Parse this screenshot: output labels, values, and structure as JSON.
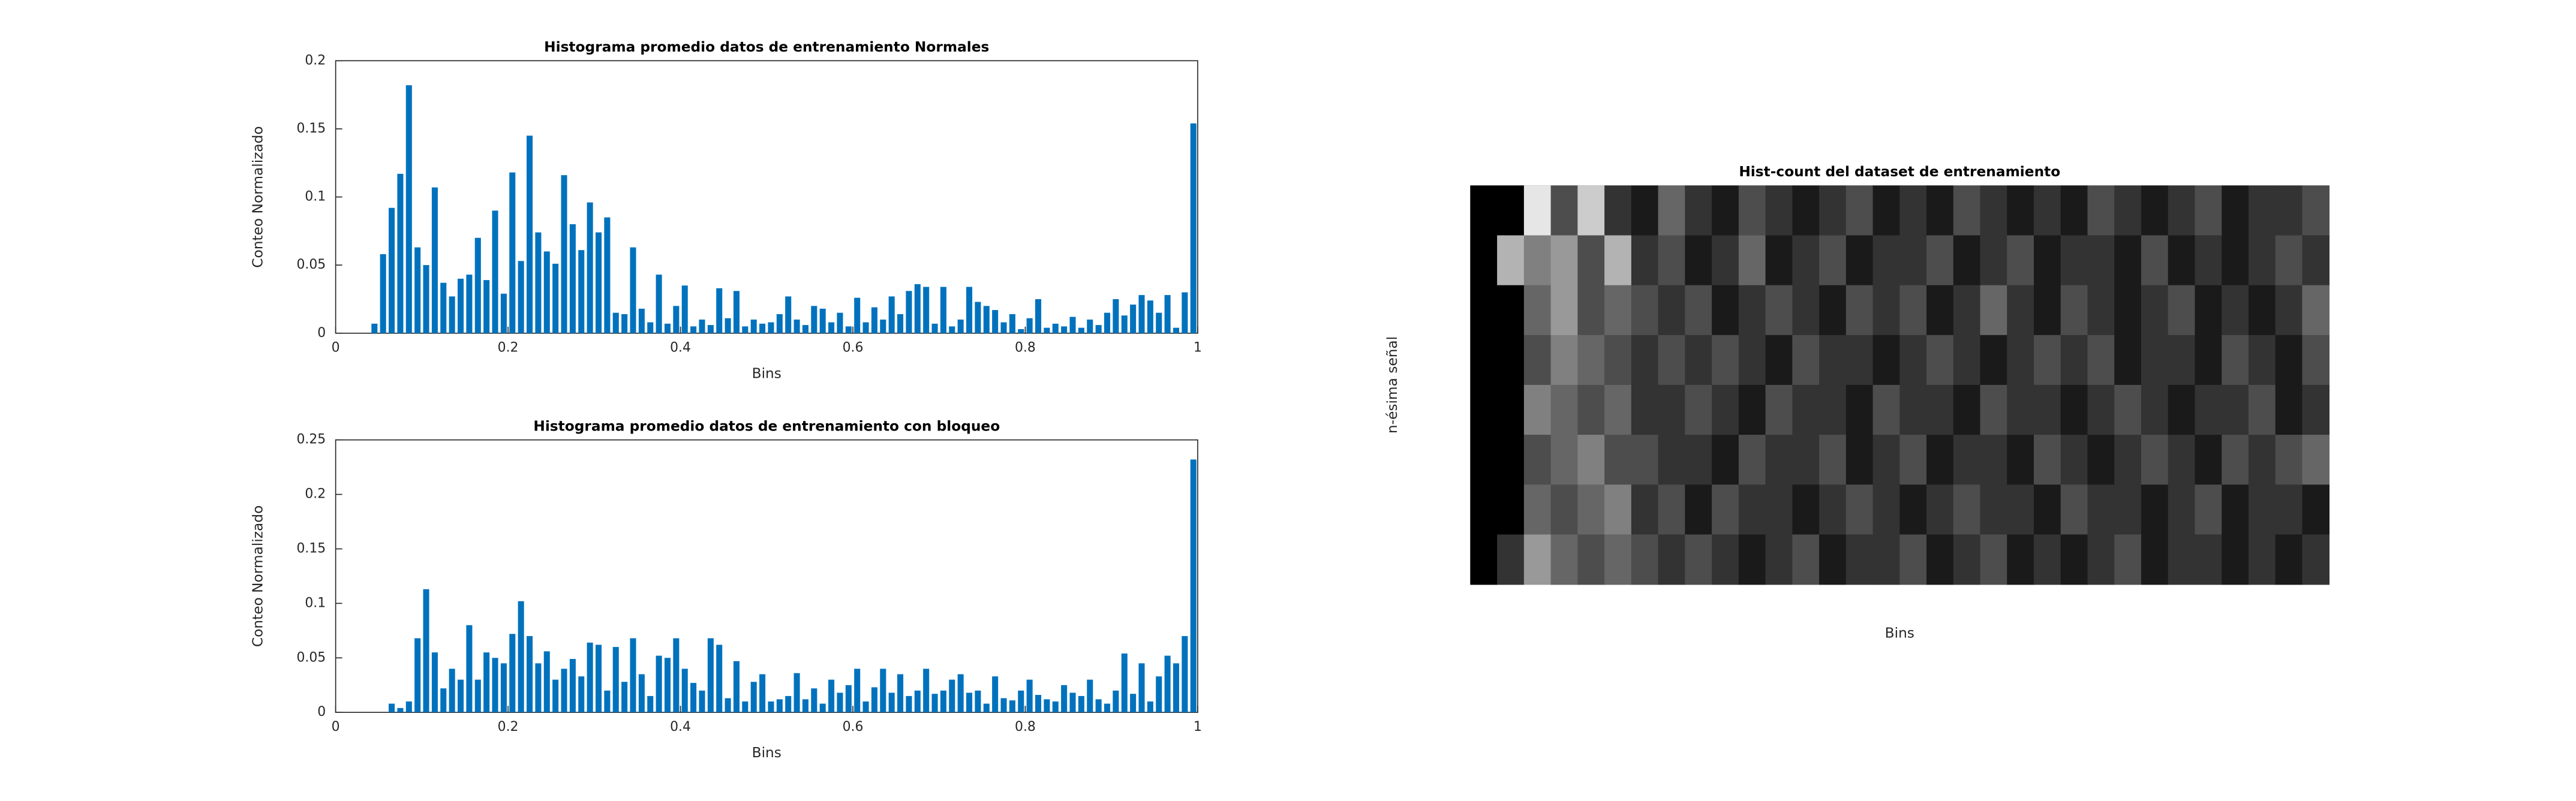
{
  "chart_data": [
    {
      "type": "histogram",
      "title": "Histograma promedio datos de entrenamiento Normales",
      "xlabel": "Bins",
      "ylabel": "Conteo Normalizado",
      "color": "#0072bd",
      "bins": [
        0,
        0.01,
        0.02,
        0.03,
        0.04,
        0.05,
        0.06,
        0.07,
        0.08,
        0.09,
        0.1,
        0.11,
        0.12,
        0.13,
        0.14,
        0.15,
        0.16,
        0.17,
        0.18,
        0.19,
        0.2,
        0.21,
        0.22,
        0.23,
        0.24,
        0.25,
        0.26,
        0.27,
        0.28,
        0.29,
        0.3,
        0.31,
        0.32,
        0.33,
        0.34,
        0.35,
        0.36,
        0.37,
        0.38,
        0.39,
        0.4,
        0.41,
        0.42,
        0.43,
        0.44,
        0.45,
        0.46,
        0.47,
        0.48,
        0.49,
        0.5,
        0.51,
        0.52,
        0.53,
        0.54,
        0.55,
        0.56,
        0.57,
        0.58,
        0.59,
        0.6,
        0.61,
        0.62,
        0.63,
        0.64,
        0.65,
        0.66,
        0.67,
        0.68,
        0.69,
        0.7,
        0.71,
        0.72,
        0.73,
        0.74,
        0.75,
        0.76,
        0.77,
        0.78,
        0.79,
        0.8,
        0.81,
        0.82,
        0.83,
        0.84,
        0.85,
        0.86,
        0.87,
        0.88,
        0.89,
        0.9,
        0.91,
        0.92,
        0.93,
        0.94,
        0.95,
        0.96,
        0.97,
        0.98,
        0.99,
        1
      ],
      "values": [
        0,
        0,
        0,
        0,
        0.007,
        0.058,
        0.092,
        0.117,
        0.182,
        0.063,
        0.05,
        0.107,
        0.037,
        0.027,
        0.04,
        0.043,
        0.07,
        0.039,
        0.09,
        0.029,
        0.118,
        0.053,
        0.145,
        0.074,
        0.06,
        0.051,
        0.116,
        0.08,
        0.061,
        0.096,
        0.074,
        0.085,
        0.015,
        0.014,
        0.063,
        0.018,
        0.008,
        0.043,
        0.007,
        0.02,
        0.035,
        0.005,
        0.01,
        0.006,
        0.033,
        0.011,
        0.031,
        0.005,
        0.01,
        0.007,
        0.008,
        0.014,
        0.027,
        0.01,
        0.006,
        0.02,
        0.018,
        0.008,
        0.015,
        0.005,
        0.026,
        0.008,
        0.019,
        0.01,
        0.027,
        0.014,
        0.031,
        0.036,
        0.034,
        0.007,
        0.034,
        0.005,
        0.01,
        0.034,
        0.023,
        0.02,
        0.017,
        0.008,
        0.014,
        0.003,
        0.011,
        0.025,
        0.004,
        0.007,
        0.005,
        0.012,
        0.004,
        0.01,
        0.006,
        0.015,
        0.025,
        0.013,
        0.021,
        0.028,
        0.024,
        0.015,
        0.028,
        0.004,
        0.03,
        0.154
      ],
      "xlim": [
        0,
        1
      ],
      "xticks": [
        0,
        0.2,
        0.4,
        0.6,
        0.8,
        1
      ],
      "ylim": [
        0,
        0.2
      ],
      "yticks": [
        0,
        0.05,
        0.1,
        0.15,
        0.2
      ]
    },
    {
      "type": "histogram",
      "title": "Histograma promedio datos de entrenamiento con bloqueo",
      "xlabel": "Bins",
      "ylabel": "Conteo Normalizado",
      "color": "#0072bd",
      "bins": [
        0,
        0.01,
        0.02,
        0.03,
        0.04,
        0.05,
        0.06,
        0.07,
        0.08,
        0.09,
        0.1,
        0.11,
        0.12,
        0.13,
        0.14,
        0.15,
        0.16,
        0.17,
        0.18,
        0.19,
        0.2,
        0.21,
        0.22,
        0.23,
        0.24,
        0.25,
        0.26,
        0.27,
        0.28,
        0.29,
        0.3,
        0.31,
        0.32,
        0.33,
        0.34,
        0.35,
        0.36,
        0.37,
        0.38,
        0.39,
        0.4,
        0.41,
        0.42,
        0.43,
        0.44,
        0.45,
        0.46,
        0.47,
        0.48,
        0.49,
        0.5,
        0.51,
        0.52,
        0.53,
        0.54,
        0.55,
        0.56,
        0.57,
        0.58,
        0.59,
        0.6,
        0.61,
        0.62,
        0.63,
        0.64,
        0.65,
        0.66,
        0.67,
        0.68,
        0.69,
        0.7,
        0.71,
        0.72,
        0.73,
        0.74,
        0.75,
        0.76,
        0.77,
        0.78,
        0.79,
        0.8,
        0.81,
        0.82,
        0.83,
        0.84,
        0.85,
        0.86,
        0.87,
        0.88,
        0.89,
        0.9,
        0.91,
        0.92,
        0.93,
        0.94,
        0.95,
        0.96,
        0.97,
        0.98,
        0.99,
        1
      ],
      "values": [
        0,
        0,
        0,
        0,
        0,
        0,
        0.008,
        0.004,
        0.01,
        0.068,
        0.113,
        0.055,
        0.022,
        0.04,
        0.03,
        0.08,
        0.03,
        0.055,
        0.05,
        0.045,
        0.072,
        0.102,
        0.07,
        0.045,
        0.056,
        0.03,
        0.04,
        0.049,
        0.033,
        0.064,
        0.062,
        0.02,
        0.06,
        0.028,
        0.068,
        0.035,
        0.015,
        0.052,
        0.05,
        0.068,
        0.04,
        0.027,
        0.02,
        0.068,
        0.062,
        0.013,
        0.047,
        0.01,
        0.028,
        0.035,
        0.01,
        0.012,
        0.015,
        0.036,
        0.012,
        0.022,
        0.008,
        0.03,
        0.018,
        0.025,
        0.04,
        0.01,
        0.023,
        0.04,
        0.018,
        0.035,
        0.015,
        0.02,
        0.04,
        0.017,
        0.02,
        0.03,
        0.035,
        0.018,
        0.02,
        0.008,
        0.033,
        0.013,
        0.011,
        0.02,
        0.03,
        0.016,
        0.012,
        0.01,
        0.025,
        0.018,
        0.015,
        0.03,
        0.012,
        0.008,
        0.02,
        0.054,
        0.017,
        0.045,
        0.01,
        0.033,
        0.052,
        0.045,
        0.07,
        0.232
      ],
      "xlim": [
        0,
        1
      ],
      "xticks": [
        0,
        0.2,
        0.4,
        0.6,
        0.8,
        1
      ],
      "ylim": [
        0,
        0.25
      ],
      "yticks": [
        0,
        0.05,
        0.1,
        0.15,
        0.2,
        0.25
      ]
    },
    {
      "type": "heatmap",
      "title": "Hist-count del dataset de entrenamiento",
      "xlabel": "Bins",
      "ylabel": "n-ésima señal",
      "colormap": "gray",
      "z": [
        [
          0,
          0,
          0.9,
          0.3,
          0.8,
          0.2,
          0.1,
          0.4,
          0.2,
          0.1,
          0.3,
          0.2,
          0.1,
          0.2,
          0.3,
          0.1,
          0.2,
          0.1,
          0.3,
          0.2,
          0.1,
          0.2,
          0.1,
          0.3,
          0.2,
          0.1,
          0.2,
          0.3,
          0.1,
          0.2,
          0.2,
          0.3
        ],
        [
          0,
          0.7,
          0.5,
          0.6,
          0.3,
          0.7,
          0.2,
          0.3,
          0.1,
          0.2,
          0.4,
          0.1,
          0.2,
          0.3,
          0.1,
          0.2,
          0.2,
          0.3,
          0.1,
          0.2,
          0.3,
          0.1,
          0.2,
          0.2,
          0.1,
          0.3,
          0.1,
          0.2,
          0.1,
          0.2,
          0.3,
          0.2
        ],
        [
          0,
          0,
          0.4,
          0.6,
          0.3,
          0.4,
          0.3,
          0.2,
          0.3,
          0.1,
          0.2,
          0.3,
          0.2,
          0.1,
          0.3,
          0.2,
          0.3,
          0.1,
          0.2,
          0.4,
          0.2,
          0.1,
          0.3,
          0.2,
          0.1,
          0.2,
          0.3,
          0.1,
          0.2,
          0.1,
          0.2,
          0.4
        ],
        [
          0,
          0,
          0.3,
          0.5,
          0.4,
          0.3,
          0.2,
          0.3,
          0.2,
          0.3,
          0.2,
          0.1,
          0.3,
          0.2,
          0.2,
          0.1,
          0.2,
          0.3,
          0.2,
          0.1,
          0.2,
          0.3,
          0.2,
          0.3,
          0.1,
          0.2,
          0.2,
          0.1,
          0.3,
          0.2,
          0.1,
          0.3
        ],
        [
          0,
          0,
          0.5,
          0.4,
          0.3,
          0.4,
          0.2,
          0.2,
          0.3,
          0.2,
          0.1,
          0.3,
          0.2,
          0.2,
          0.1,
          0.3,
          0.2,
          0.2,
          0.1,
          0.3,
          0.2,
          0.2,
          0.1,
          0.2,
          0.3,
          0.2,
          0.1,
          0.2,
          0.2,
          0.3,
          0.1,
          0.2
        ],
        [
          0,
          0,
          0.3,
          0.4,
          0.5,
          0.3,
          0.3,
          0.2,
          0.2,
          0.1,
          0.3,
          0.2,
          0.2,
          0.3,
          0.1,
          0.2,
          0.3,
          0.1,
          0.2,
          0.2,
          0.1,
          0.3,
          0.2,
          0.1,
          0.2,
          0.3,
          0.2,
          0.1,
          0.3,
          0.2,
          0.3,
          0.4
        ],
        [
          0,
          0,
          0.4,
          0.3,
          0.4,
          0.5,
          0.2,
          0.3,
          0.1,
          0.3,
          0.2,
          0.2,
          0.1,
          0.2,
          0.3,
          0.2,
          0.1,
          0.2,
          0.3,
          0.2,
          0.2,
          0.1,
          0.3,
          0.2,
          0.2,
          0.1,
          0.2,
          0.3,
          0.1,
          0.2,
          0.2,
          0.1
        ],
        [
          0,
          0.2,
          0.6,
          0.4,
          0.3,
          0.4,
          0.3,
          0.2,
          0.3,
          0.2,
          0.1,
          0.2,
          0.3,
          0.1,
          0.2,
          0.2,
          0.3,
          0.1,
          0.2,
          0.3,
          0.1,
          0.2,
          0.1,
          0.2,
          0.3,
          0.1,
          0.2,
          0.2,
          0.1,
          0.2,
          0.1,
          0.2
        ]
      ]
    }
  ]
}
